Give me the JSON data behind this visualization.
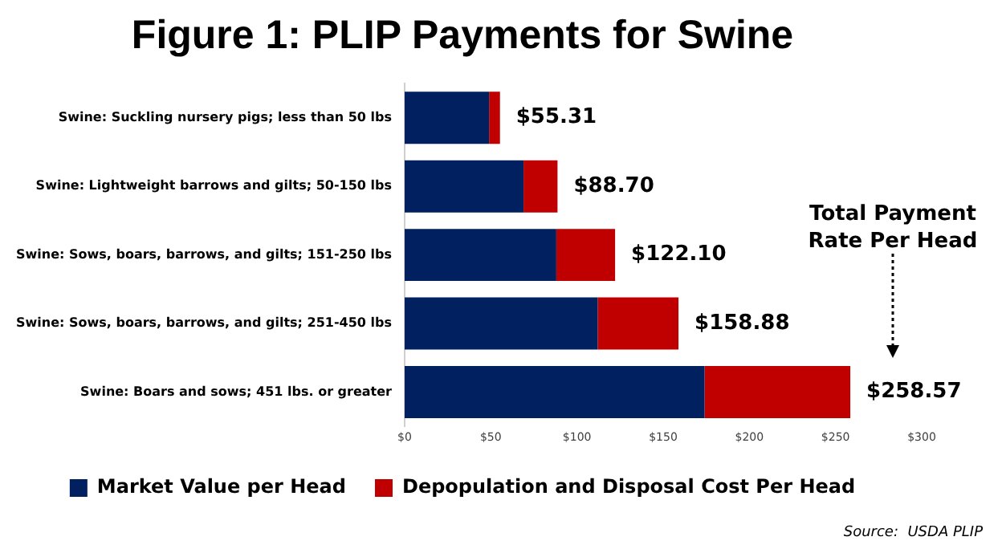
{
  "chart_data": {
    "type": "bar",
    "orientation": "horizontal",
    "stacked": true,
    "title": "Figure 1: PLIP Payments for Swine",
    "categories": [
      "Swine: Suckling nursery pigs; less than 50 lbs",
      "Swine: Lightweight barrows and gilts; 50-150 lbs",
      "Swine: Sows, boars, barrows, and gilts; 151-250 lbs",
      "Swine: Sows, boars, barrows, and gilts; 251-450 lbs",
      "Swine: Boars and sows; 451 lbs. or greater"
    ],
    "series": [
      {
        "name": "Market Value per Head",
        "color": "#002060",
        "values": [
          49,
          69,
          88,
          112,
          174
        ]
      },
      {
        "name": "Depopulation and Disposal Cost Per Head",
        "color": "#c00000",
        "values": [
          6.31,
          19.7,
          34.1,
          46.88,
          84.57
        ]
      }
    ],
    "totals": [
      "$55.31",
      "$88.70",
      "$122.10",
      "$158.88",
      "$258.57"
    ],
    "xlim": [
      0,
      300
    ],
    "xticks": [
      {
        "value": 0,
        "label": "$0"
      },
      {
        "value": 50,
        "label": "$50"
      },
      {
        "value": 100,
        "label": "$100"
      },
      {
        "value": 150,
        "label": "$150"
      },
      {
        "value": 200,
        "label": "$200"
      },
      {
        "value": 250,
        "label": "$250"
      },
      {
        "value": 300,
        "label": "$300"
      }
    ],
    "grid": false,
    "legend": "bottom",
    "annotations": [
      "Total Payment Rate Per Head",
      "Source:  USDA PLIP"
    ]
  }
}
